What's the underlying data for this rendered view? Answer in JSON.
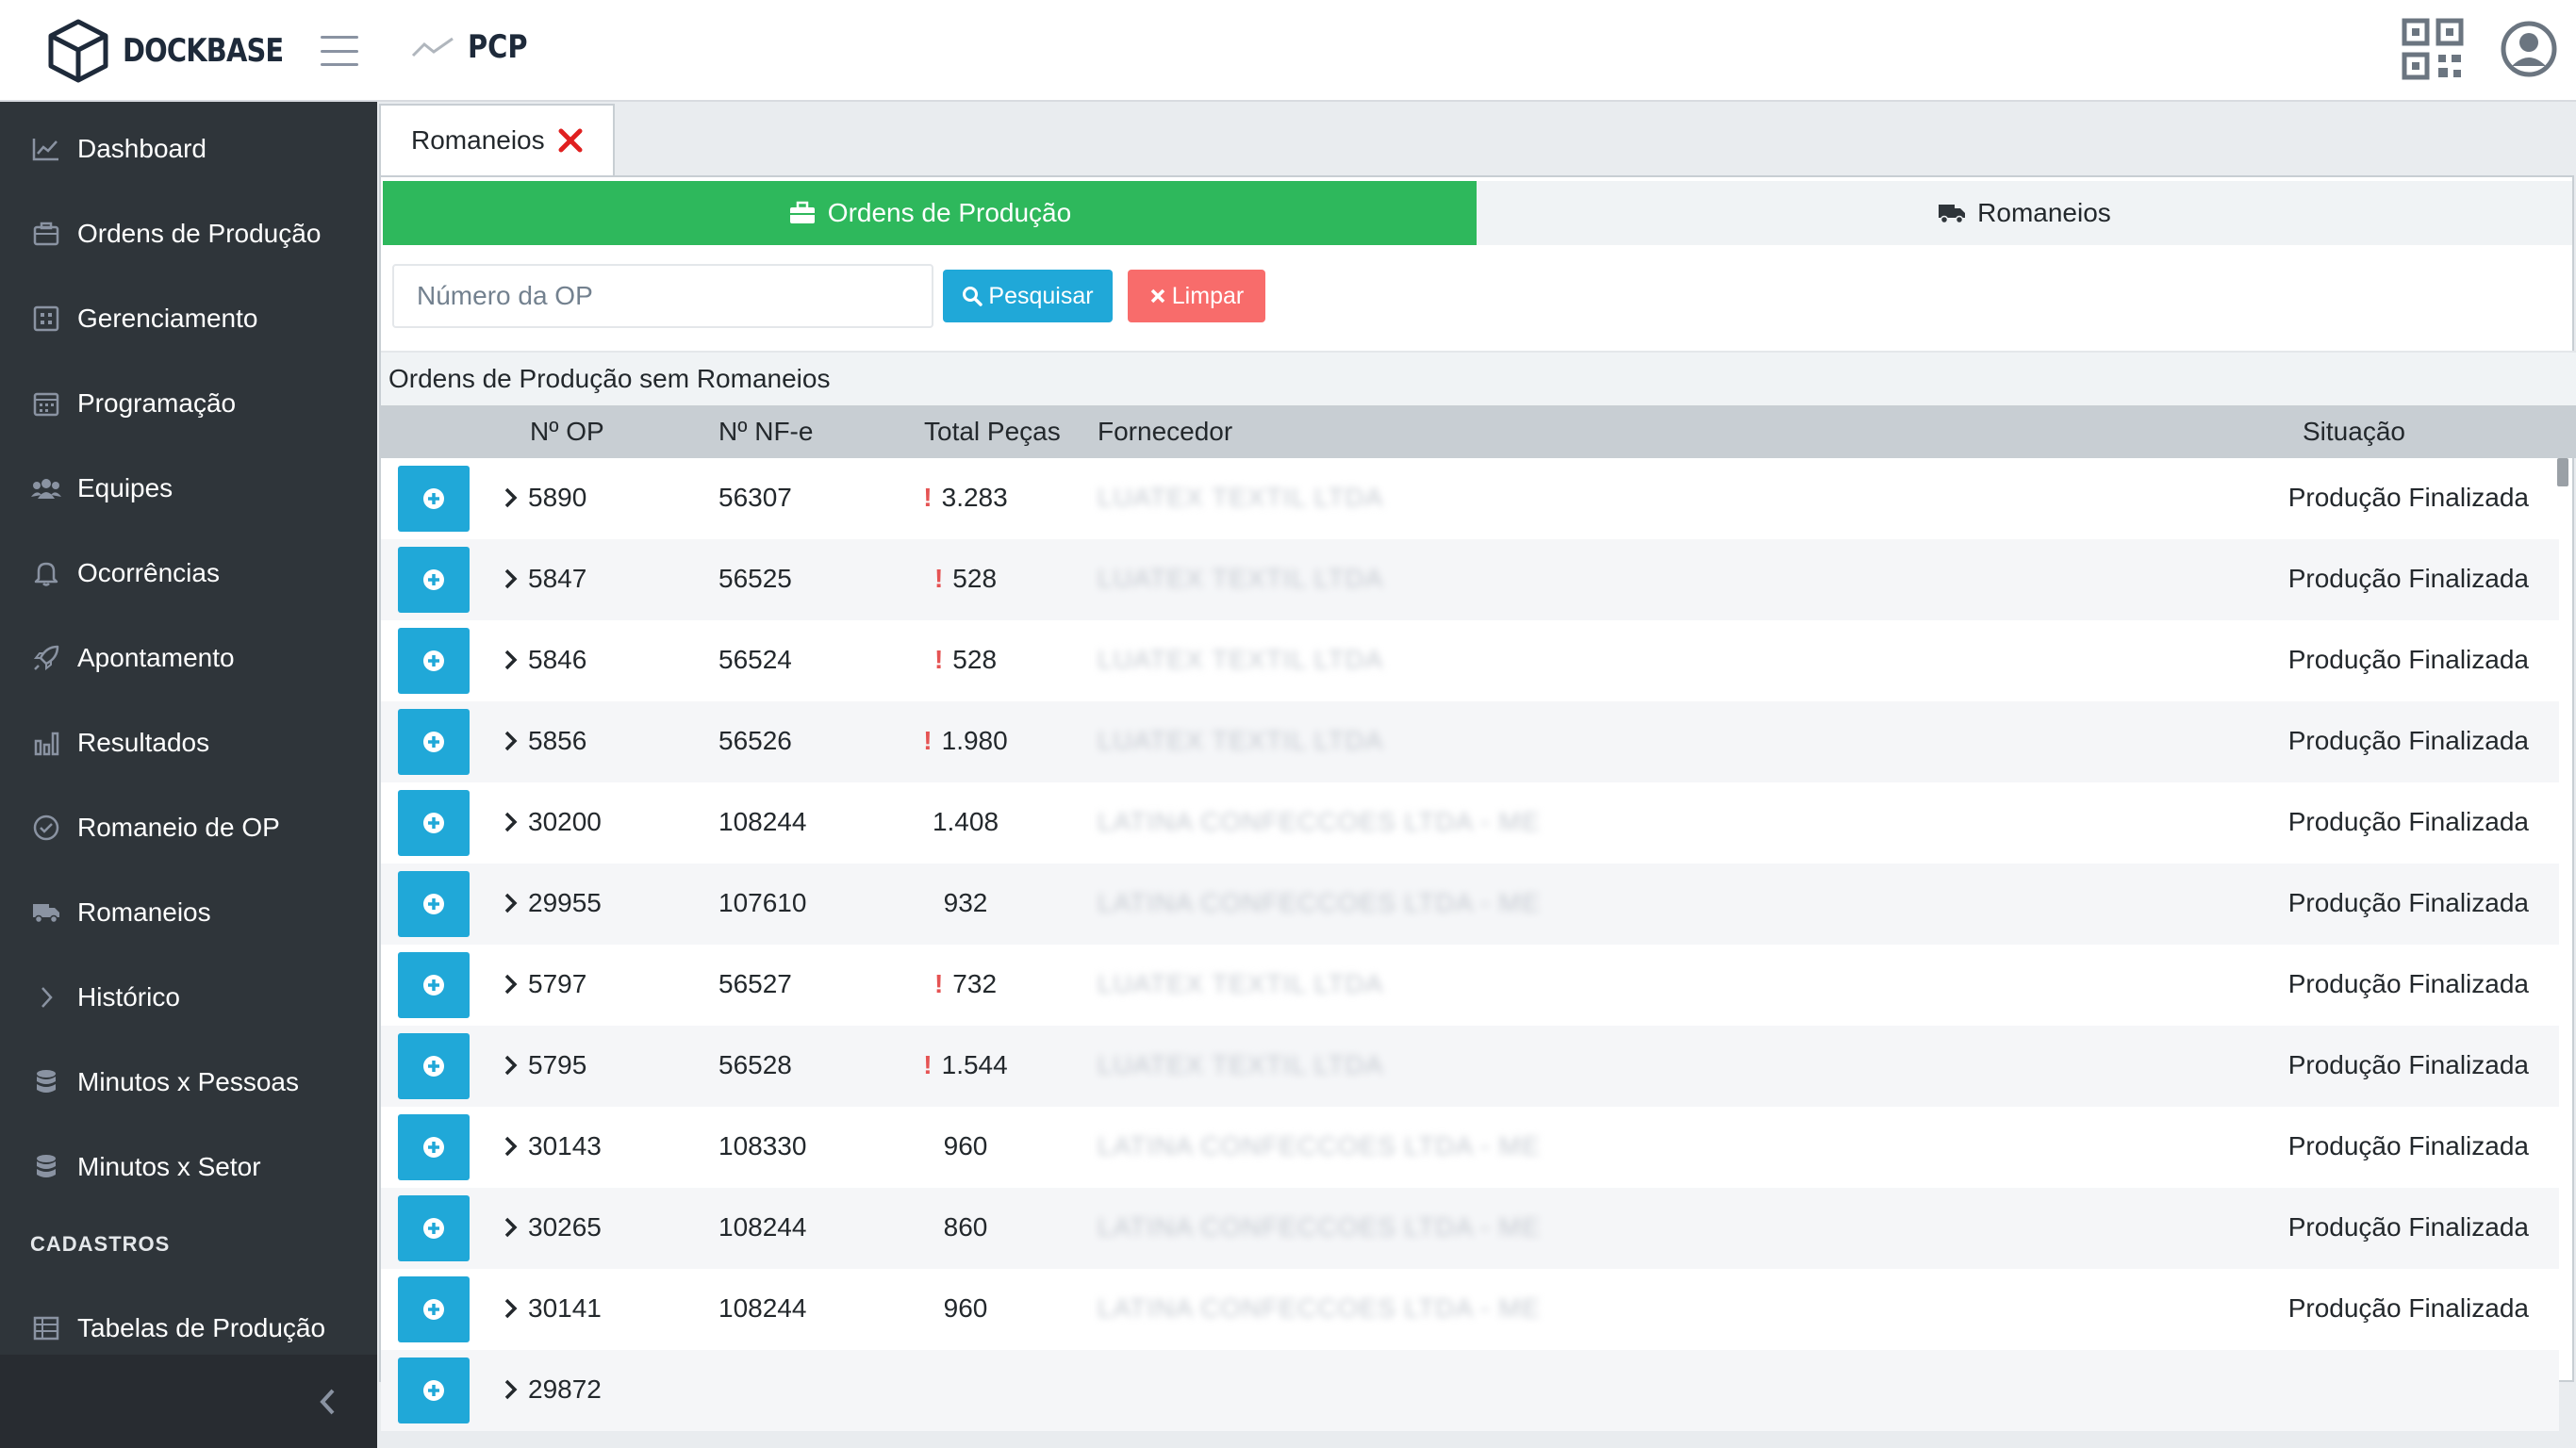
{
  "header": {
    "brand": "DOCKBASE",
    "module": "PCP"
  },
  "sidebar": {
    "items": [
      {
        "label": "Dashboard",
        "icon": "chart-line-icon"
      },
      {
        "label": "Ordens de Produção",
        "icon": "briefcase-icon"
      },
      {
        "label": "Gerenciamento",
        "icon": "grid-icon"
      },
      {
        "label": "Programação",
        "icon": "calendar-icon"
      },
      {
        "label": "Equipes",
        "icon": "users-icon"
      },
      {
        "label": "Ocorrências",
        "icon": "bell-icon"
      },
      {
        "label": "Apontamento",
        "icon": "rocket-icon"
      },
      {
        "label": "Resultados",
        "icon": "bar-chart-icon"
      },
      {
        "label": "Romaneio de OP",
        "icon": "check-circle-icon"
      },
      {
        "label": "Romaneios",
        "icon": "truck-icon"
      },
      {
        "label": "Histórico",
        "icon": "chevron-right-icon"
      },
      {
        "label": "Minutos x Pessoas",
        "icon": "database-icon"
      },
      {
        "label": "Minutos x Setor",
        "icon": "database-icon"
      }
    ],
    "section_title": "CADASTROS",
    "cadastros": [
      {
        "label": "Tabelas de Produção",
        "icon": "table-icon"
      }
    ]
  },
  "tabs": {
    "open_tab": "Romaneios"
  },
  "segments": {
    "ordens": "Ordens de Produção",
    "romaneios": "Romaneios"
  },
  "search": {
    "placeholder": "Número da OP",
    "search_label": "Pesquisar",
    "clear_label": "Limpar"
  },
  "section_title": "Ordens de Produção sem Romaneios",
  "table": {
    "headers": {
      "op": "Nº OP",
      "nfe": "Nº NF-e",
      "pecas": "Total Peças",
      "fornecedor": "Fornecedor",
      "situacao": "Situação"
    },
    "rows": [
      {
        "op": "5890",
        "nfe": "56307",
        "pecas": "3.283",
        "warn": true,
        "fornecedor": "LUATEX TEXTIL LTDA",
        "situacao": "Produção Finalizada"
      },
      {
        "op": "5847",
        "nfe": "56525",
        "pecas": "528",
        "warn": true,
        "fornecedor": "LUATEX TEXTIL LTDA",
        "situacao": "Produção Finalizada"
      },
      {
        "op": "5846",
        "nfe": "56524",
        "pecas": "528",
        "warn": true,
        "fornecedor": "LUATEX TEXTIL LTDA",
        "situacao": "Produção Finalizada"
      },
      {
        "op": "5856",
        "nfe": "56526",
        "pecas": "1.980",
        "warn": true,
        "fornecedor": "LUATEX TEXTIL LTDA",
        "situacao": "Produção Finalizada"
      },
      {
        "op": "30200",
        "nfe": "108244",
        "pecas": "1.408",
        "warn": false,
        "fornecedor": "LATINA CONFECCOES LTDA - ME",
        "situacao": "Produção Finalizada"
      },
      {
        "op": "29955",
        "nfe": "107610",
        "pecas": "932",
        "warn": false,
        "fornecedor": "LATINA CONFECCOES LTDA - ME",
        "situacao": "Produção Finalizada"
      },
      {
        "op": "5797",
        "nfe": "56527",
        "pecas": "732",
        "warn": true,
        "fornecedor": "LUATEX TEXTIL LTDA",
        "situacao": "Produção Finalizada"
      },
      {
        "op": "5795",
        "nfe": "56528",
        "pecas": "1.544",
        "warn": true,
        "fornecedor": "LUATEX TEXTIL LTDA",
        "situacao": "Produção Finalizada"
      },
      {
        "op": "30143",
        "nfe": "108330",
        "pecas": "960",
        "warn": false,
        "fornecedor": "LATINA CONFECCOES LTDA - ME",
        "situacao": "Produção Finalizada"
      },
      {
        "op": "30265",
        "nfe": "108244",
        "pecas": "860",
        "warn": false,
        "fornecedor": "LATINA CONFECCOES LTDA - ME",
        "situacao": "Produção Finalizada"
      },
      {
        "op": "30141",
        "nfe": "108244",
        "pecas": "960",
        "warn": false,
        "fornecedor": "LATINA CONFECCOES LTDA - ME",
        "situacao": "Produção Finalizada"
      },
      {
        "op": "29872",
        "nfe": "",
        "pecas": "",
        "warn": false,
        "fornecedor": "",
        "situacao": ""
      }
    ]
  },
  "colors": {
    "sidebar_bg": "#2f353a",
    "success": "#2eb85c",
    "info": "#20a8d8",
    "danger": "#f86c6b",
    "warning_mark": "#e55353"
  }
}
